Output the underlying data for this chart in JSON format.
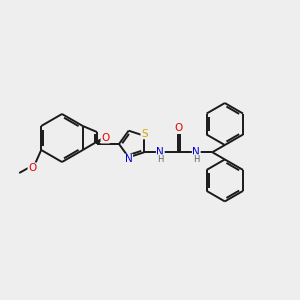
{
  "background_color": "#eeeeee",
  "bond_color": "#1a1a1a",
  "atom_colors": {
    "O": "#e60000",
    "N": "#0000cc",
    "S": "#ccaa00",
    "C": "#1a1a1a",
    "H": "#606060"
  },
  "title": "",
  "figsize": [
    3.0,
    3.0
  ],
  "dpi": 100,
  "bond_lw": 1.4,
  "double_sep": 2.2,
  "font_size": 7.0
}
